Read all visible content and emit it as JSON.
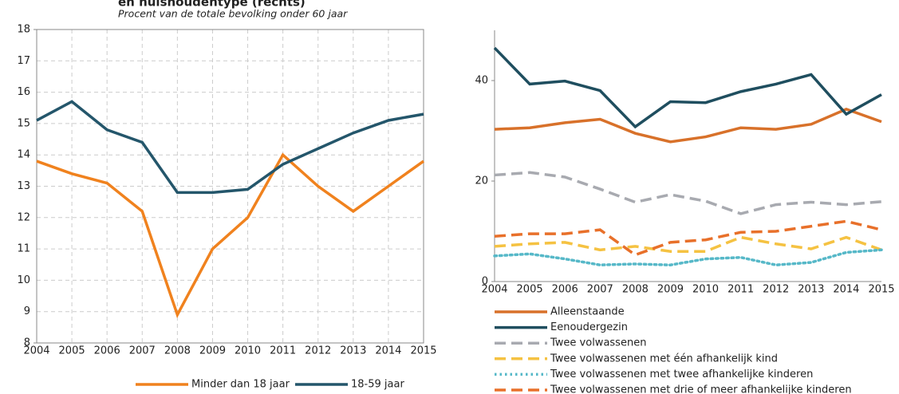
{
  "chart_data": [
    {
      "type": "line",
      "title": "en huishoudentype (rechts)",
      "subtitle": "Procent van de totale bevolking onder 60 jaar",
      "x": [
        2004,
        2005,
        2006,
        2007,
        2008,
        2009,
        2010,
        2011,
        2012,
        2013,
        2014,
        2015
      ],
      "xlim": [
        2004,
        2015
      ],
      "ylim": [
        8,
        18
      ],
      "yticks": [
        8,
        9,
        10,
        11,
        12,
        13,
        14,
        15,
        16,
        17,
        18
      ],
      "grid": true,
      "legend": "bottom",
      "series": [
        {
          "name": "Minder dan 18 jaar",
          "color": "#f0821e",
          "dash": "solid",
          "values": [
            13.8,
            13.4,
            13.1,
            12.2,
            8.9,
            11.0,
            12.0,
            14.0,
            13.0,
            12.2,
            13.0,
            13.8
          ]
        },
        {
          "name": "18-59 jaar",
          "color": "#24566b",
          "dash": "solid",
          "values": [
            15.1,
            15.7,
            14.8,
            14.4,
            12.8,
            12.8,
            12.9,
            13.7,
            14.2,
            14.7,
            15.1,
            15.3
          ]
        }
      ]
    },
    {
      "type": "line",
      "x": [
        2004,
        2005,
        2006,
        2007,
        2008,
        2009,
        2010,
        2011,
        2012,
        2013,
        2014,
        2015
      ],
      "xlim": [
        2004,
        2015
      ],
      "ylim": [
        0,
        50
      ],
      "yticks": [
        0,
        20,
        40
      ],
      "grid": false,
      "legend": "bottom",
      "series": [
        {
          "name": "Alleenstaande",
          "color": "#d8712a",
          "dash": "solid",
          "values": [
            30.3,
            30.6,
            31.6,
            32.3,
            29.5,
            27.8,
            28.8,
            30.6,
            30.3,
            31.3,
            34.3,
            31.8
          ]
        },
        {
          "name": "Eenoudergezin",
          "color": "#1f4e5f",
          "dash": "solid",
          "values": [
            46.5,
            39.3,
            39.9,
            38.0,
            30.8,
            35.8,
            35.6,
            37.8,
            39.3,
            41.2,
            33.3,
            37.2
          ]
        },
        {
          "name": "Twee volwassenen",
          "color": "#a8aab0",
          "dash": "dashed",
          "values": [
            21.2,
            21.7,
            20.8,
            18.4,
            15.8,
            17.3,
            16.0,
            13.5,
            15.3,
            15.8,
            15.3,
            15.9
          ]
        },
        {
          "name": "Twee volwassenen met één afhankelijk kind",
          "color": "#f5c242",
          "dash": "dashed",
          "values": [
            7.0,
            7.5,
            7.8,
            6.3,
            7.0,
            6.0,
            6.0,
            8.8,
            7.5,
            6.5,
            8.8,
            6.3
          ]
        },
        {
          "name": "Twee volwassenen met twee afhankelijke kinderen",
          "color": "#56b8c8",
          "dash": "dotted",
          "values": [
            5.1,
            5.5,
            4.5,
            3.3,
            3.5,
            3.3,
            4.5,
            4.8,
            3.3,
            3.8,
            5.8,
            6.3
          ]
        },
        {
          "name": "Twee volwassenen met drie of meer afhankelijke kinderen",
          "color": "#e8702a",
          "dash": "dashed",
          "values": [
            9.0,
            9.5,
            9.5,
            10.3,
            5.3,
            7.8,
            8.3,
            9.8,
            10.0,
            11.0,
            12.0,
            10.3
          ]
        }
      ]
    }
  ]
}
